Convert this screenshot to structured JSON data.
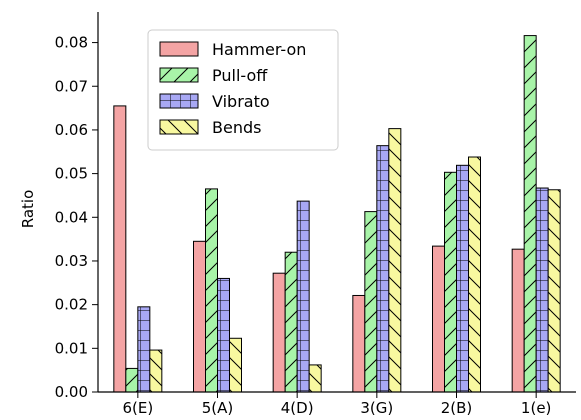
{
  "chart_data": {
    "type": "bar",
    "categories": [
      "6(E)",
      "5(A)",
      "4(D)",
      "3(G)",
      "2(B)",
      "1(e)"
    ],
    "series": [
      {
        "name": "Hammer-on",
        "values": [
          0.0655,
          0.0345,
          0.0272,
          0.0221,
          0.0334,
          0.0327
        ],
        "color": "#f4a4a4",
        "hatch": "none"
      },
      {
        "name": "Pull-off",
        "values": [
          0.0054,
          0.0465,
          0.032,
          0.0413,
          0.0503,
          0.0816
        ],
        "color": "#a8f4a8",
        "hatch": "diagonal-up"
      },
      {
        "name": "Vibrato",
        "values": [
          0.0195,
          0.026,
          0.0437,
          0.0564,
          0.0519,
          0.0467
        ],
        "color": "#a8a8f4",
        "hatch": "grid"
      },
      {
        "name": "Bends",
        "values": [
          0.0096,
          0.0123,
          0.0062,
          0.0603,
          0.0538,
          0.0463
        ],
        "color": "#f8f8a0",
        "hatch": "diagonal-down"
      }
    ],
    "title": "",
    "xlabel": "",
    "ylabel": "Ratio",
    "ylim": [
      0,
      0.087
    ],
    "yticks": [
      "0.00",
      "0.01",
      "0.02",
      "0.03",
      "0.04",
      "0.05",
      "0.06",
      "0.07",
      "0.08"
    ],
    "grid": false,
    "legend_position": "upper-center-left"
  }
}
